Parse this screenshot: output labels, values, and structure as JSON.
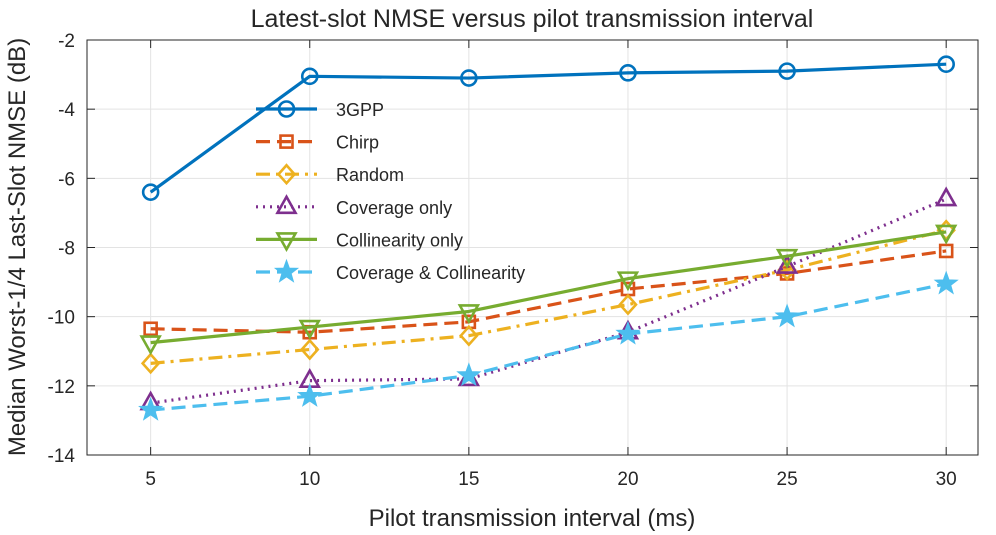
{
  "chart_data": {
    "type": "line",
    "title": "Latest-slot NMSE versus pilot transmission interval",
    "xlabel": "Pilot transmission interval (ms)",
    "ylabel": "Median Worst-1/4 Last-Slot NMSE (dB)",
    "x": [
      5,
      10,
      15,
      20,
      25,
      30
    ],
    "xlim": [
      3,
      31
    ],
    "ylim": [
      -14,
      -2
    ],
    "xticks": [
      5,
      10,
      15,
      20,
      25,
      30
    ],
    "yticks": [
      -14,
      -12,
      -10,
      -8,
      -6,
      -4,
      -2
    ],
    "grid": true,
    "legend_position": "upper-left-center",
    "series": [
      {
        "name": "3GPP",
        "color": "#0072bd",
        "dash": "solid",
        "marker": "circle",
        "values": [
          -6.4,
          -3.05,
          -3.1,
          -2.95,
          -2.9,
          -2.7
        ]
      },
      {
        "name": "Chirp",
        "color": "#d95319",
        "dash": "dashed",
        "marker": "square",
        "values": [
          -10.35,
          -10.45,
          -10.15,
          -9.2,
          -8.75,
          -8.1
        ]
      },
      {
        "name": "Random",
        "color": "#edb120",
        "dash": "dashdot",
        "marker": "diamond",
        "values": [
          -11.35,
          -10.95,
          -10.55,
          -9.65,
          -8.65,
          -7.5
        ]
      },
      {
        "name": "Coverage only",
        "color": "#7e2f8e",
        "dash": "dotted",
        "marker": "triangle-up",
        "values": [
          -12.5,
          -11.85,
          -11.8,
          -10.45,
          -8.55,
          -6.6
        ]
      },
      {
        "name": "Collinearity only",
        "color": "#77ac30",
        "dash": "solid",
        "marker": "triangle-down",
        "values": [
          -10.75,
          -10.3,
          -9.85,
          -8.9,
          -8.25,
          -7.55
        ]
      },
      {
        "name": "Coverage & Collinearity",
        "color": "#4dbeee",
        "dash": "dashed",
        "marker": "star",
        "values": [
          -12.7,
          -12.3,
          -11.7,
          -10.5,
          -10.0,
          -9.05
        ]
      }
    ]
  }
}
